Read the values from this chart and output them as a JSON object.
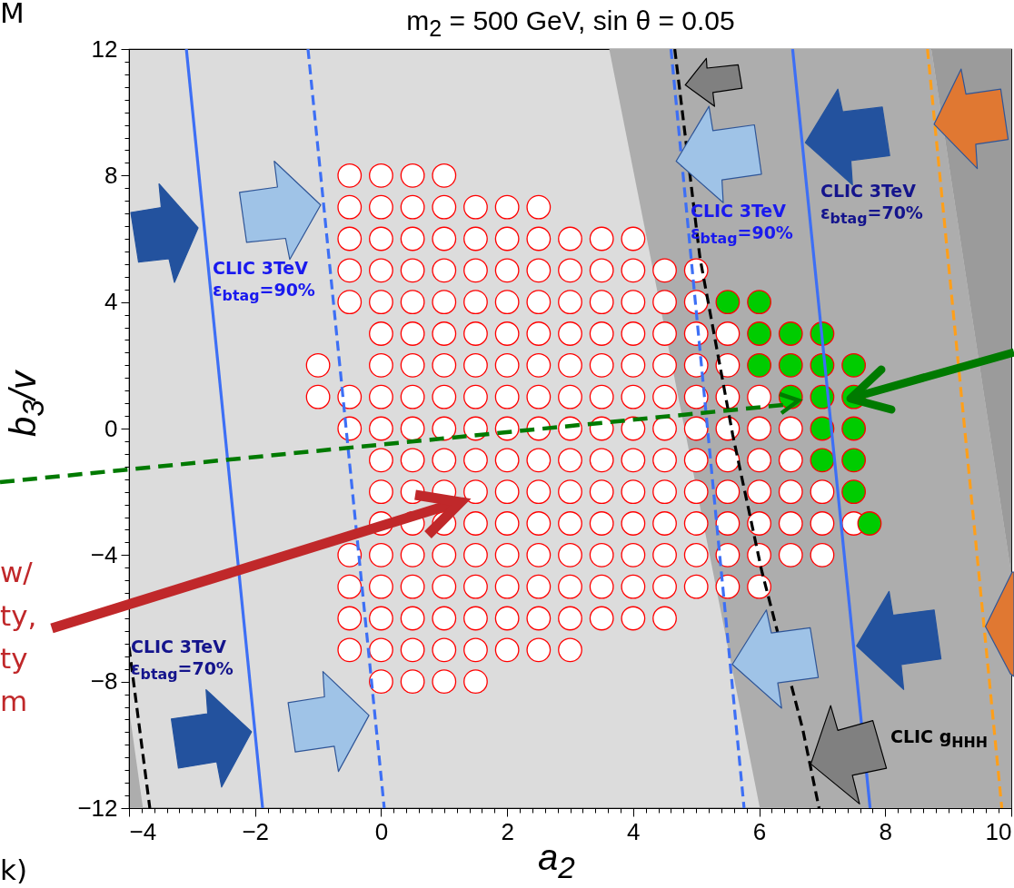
{
  "chart_data": {
    "type": "scatter",
    "title": "m$_{2}$ = 500 GeV, sin θ = 0.05",
    "xlabel": "a$_{2}$",
    "ylabel": "b$_{3}$/v",
    "xlim": [
      -4,
      10
    ],
    "ylim": [
      -12,
      12
    ],
    "xticks": [
      -4,
      {
        "value": -3.8,
        "label": null
      },
      {
        "value": -3.6,
        "label": null
      },
      {
        "value": -3.4,
        "label": null
      },
      {
        "value": -3.2,
        "label": null
      },
      {
        "value": -3,
        "label": null
      },
      {
        "value": -2.8,
        "label": null
      },
      {
        "value": -2.6,
        "label": null
      },
      {
        "value": -2.4,
        "label": null
      },
      {
        "value": -2.2,
        "label": null
      },
      -2,
      {
        "value": -1.8,
        "label": null
      },
      {
        "value": -1.6,
        "label": null
      },
      {
        "value": -1.4,
        "label": null
      },
      {
        "value": -1.2,
        "label": null
      },
      {
        "value": -1,
        "label": null
      },
      {
        "value": -0.8,
        "label": null
      },
      {
        "value": -0.6,
        "label": null
      },
      {
        "value": -0.4,
        "label": null
      },
      {
        "value": -0.2,
        "label": null
      },
      0,
      {
        "value": 0.2,
        "label": null
      },
      {
        "value": 0.4,
        "label": null
      },
      {
        "value": 0.6,
        "label": null
      },
      {
        "value": 0.8,
        "label": null
      },
      {
        "value": 1,
        "label": null
      },
      {
        "value": 1.2,
        "label": null
      },
      {
        "value": 1.4,
        "label": null
      },
      {
        "value": 1.6,
        "label": null
      },
      {
        "value": 1.8,
        "label": null
      },
      2,
      {
        "value": 2.2,
        "label": null
      },
      {
        "value": 2.4,
        "label": null
      },
      {
        "value": 2.6,
        "label": null
      },
      {
        "value": 2.8,
        "label": null
      },
      {
        "value": 3,
        "label": null
      },
      {
        "value": 3.2,
        "label": null
      },
      {
        "value": 3.4,
        "label": null
      },
      {
        "value": 3.6,
        "label": null
      },
      {
        "value": 3.8,
        "label": null
      },
      4,
      {
        "value": 4.2,
        "label": null
      },
      {
        "value": 4.4,
        "label": null
      },
      {
        "value": 4.6,
        "label": null
      },
      {
        "value": 4.8,
        "label": null
      },
      {
        "value": 5,
        "label": null
      },
      {
        "value": 5.2,
        "label": null
      },
      {
        "value": 5.4,
        "label": null
      },
      {
        "value": 5.6,
        "label": null
      },
      {
        "value": 5.8,
        "label": null
      },
      6,
      {
        "value": 6.2,
        "label": null
      },
      {
        "value": 6.4,
        "label": null
      },
      {
        "value": 6.6,
        "label": null
      },
      {
        "value": 6.8,
        "label": null
      },
      {
        "value": 7,
        "label": null
      },
      {
        "value": 7.2,
        "label": null
      },
      {
        "value": 7.4,
        "label": null
      },
      {
        "value": 7.6,
        "label": null
      },
      {
        "value": 7.8,
        "label": null
      },
      8,
      {
        "value": 8.2,
        "label": null
      },
      {
        "value": 8.4,
        "label": null
      },
      {
        "value": 8.6,
        "label": null
      },
      {
        "value": 8.8,
        "label": null
      },
      {
        "value": 9,
        "label": null
      },
      {
        "value": 9.2,
        "label": null
      },
      {
        "value": 9.4,
        "label": null
      },
      {
        "value": 9.6,
        "label": null
      },
      {
        "value": 9.8,
        "label": null
      },
      10
    ],
    "yticks": [
      -12,
      {
        "value": -11.6,
        "label": null
      },
      {
        "value": -11.2,
        "label": null
      },
      {
        "value": -10.8,
        "label": null
      },
      {
        "value": -10.4,
        "label": null
      },
      {
        "value": -10,
        "label": null
      },
      {
        "value": -9.6,
        "label": null
      },
      {
        "value": -9.2,
        "label": null
      },
      {
        "value": -8.8,
        "label": null
      },
      {
        "value": -8.4,
        "label": null
      },
      -8,
      {
        "value": -7.6,
        "label": null
      },
      {
        "value": -7.2,
        "label": null
      },
      {
        "value": -6.8,
        "label": null
      },
      {
        "value": -6.4,
        "label": null
      },
      {
        "value": -6,
        "label": null
      },
      {
        "value": -5.6,
        "label": null
      },
      {
        "value": -5.2,
        "label": null
      },
      {
        "value": -4.8,
        "label": null
      },
      {
        "value": -4.4,
        "label": null
      },
      -4,
      {
        "value": -3.6,
        "label": null
      },
      {
        "value": -3.2,
        "label": null
      },
      {
        "value": -2.8,
        "label": null
      },
      {
        "value": -2.4,
        "label": null
      },
      {
        "value": -2,
        "label": null
      },
      {
        "value": -1.6,
        "label": null
      },
      {
        "value": -1.2,
        "label": null
      },
      {
        "value": -0.8,
        "label": null
      },
      {
        "value": -0.4,
        "label": null
      },
      0,
      {
        "value": 0.4,
        "label": null
      },
      {
        "value": 0.8,
        "label": null
      },
      {
        "value": 1.2,
        "label": null
      },
      {
        "value": 1.6,
        "label": null
      },
      {
        "value": 2,
        "label": null
      },
      {
        "value": 2.4,
        "label": null
      },
      {
        "value": 2.8,
        "label": null
      },
      {
        "value": 3.2,
        "label": null
      },
      {
        "value": 3.6,
        "label": null
      },
      4,
      {
        "value": 4.4,
        "label": null
      },
      {
        "value": 4.8,
        "label": null
      },
      {
        "value": 5.2,
        "label": null
      },
      {
        "value": 5.6,
        "label": null
      },
      {
        "value": 6,
        "label": null
      },
      {
        "value": 6.4,
        "label": null
      },
      {
        "value": 6.8,
        "label": null
      },
      {
        "value": 7.2,
        "label": null
      },
      {
        "value": 7.6,
        "label": null
      },
      8,
      {
        "value": 8.4,
        "label": null
      },
      {
        "value": 8.8,
        "label": null
      },
      {
        "value": 9.2,
        "label": null
      },
      {
        "value": 9.6,
        "label": null
      },
      {
        "value": 10,
        "label": null
      },
      {
        "value": 10.4,
        "label": null
      },
      {
        "value": 10.8,
        "label": null
      },
      {
        "value": 11.2,
        "label": null
      },
      {
        "value": 11.6,
        "label": null
      },
      12
    ],
    "series": [
      {
        "type": "scatter",
        "marker": "circle",
        "color": "#ff0000",
        "x": [
          -0.5,
          0,
          0.5,
          1,
          -0.5,
          0,
          0.5,
          1,
          1.5,
          2,
          2.5,
          -0.5,
          0,
          0.5,
          1,
          1.5,
          2,
          2.5,
          3,
          3.5,
          4,
          -0.5,
          0,
          0.5,
          1,
          1.5,
          2,
          2.5,
          3,
          3.5,
          4,
          4.5,
          5,
          -0.5,
          0,
          0.5,
          1,
          1.5,
          2,
          2.5,
          3,
          3.5,
          4,
          4.5,
          5,
          0,
          0.5,
          1,
          1.5,
          2,
          2.5,
          3,
          3.5,
          4,
          4.5,
          5,
          5.5,
          -1,
          0,
          0.5,
          1,
          1.5,
          2,
          2.5,
          3,
          3.5,
          4,
          4.5,
          5,
          5.5,
          -1,
          -0.5,
          0,
          0.5,
          1,
          1.5,
          2,
          2.5,
          3,
          3.5,
          4,
          4.5,
          5,
          5.5,
          6,
          -0.5,
          0,
          0.5,
          1,
          1.5,
          2,
          2.5,
          3,
          3.5,
          4,
          4.5,
          5,
          5.5,
          6,
          6.5,
          0,
          0.5,
          1,
          1.5,
          2,
          2.5,
          3,
          3.5,
          4,
          4.5,
          5,
          5.5,
          6,
          6.5,
          0,
          0.5,
          1,
          1.5,
          2,
          2.5,
          3,
          3.5,
          4,
          4.5,
          5,
          5.5,
          6,
          6.5,
          7,
          0,
          0.5,
          1,
          1.5,
          2,
          2.5,
          3,
          3.5,
          4,
          4.5,
          5,
          5.5,
          6,
          6.5,
          7,
          7.5,
          -0.5,
          0,
          0.5,
          1,
          1.5,
          2,
          2.5,
          3,
          3.5,
          4,
          4.5,
          5,
          5.5,
          6,
          6.5,
          7,
          -0.5,
          0,
          0.5,
          1,
          1.5,
          2,
          2.5,
          3,
          3.5,
          4,
          4.5,
          5,
          5.5,
          6,
          -0.5,
          0,
          0.5,
          1,
          1.5,
          2,
          2.5,
          3,
          3.5,
          4,
          4.5,
          -0.5,
          0,
          0.5,
          1,
          1.5,
          2,
          2.5,
          3,
          0,
          0.5,
          1,
          1.5
        ],
        "values": [
          8,
          8,
          8,
          8,
          7,
          7,
          7,
          7,
          7,
          7,
          7,
          6,
          6,
          6,
          6,
          6,
          6,
          6,
          6,
          6,
          6,
          5,
          5,
          5,
          5,
          5,
          5,
          5,
          5,
          5,
          5,
          5,
          5,
          4,
          4,
          4,
          4,
          4,
          4,
          4,
          4,
          4,
          4,
          4,
          4,
          3,
          3,
          3,
          3,
          3,
          3,
          3,
          3,
          3,
          3,
          3,
          3,
          2,
          2,
          2,
          2,
          2,
          2,
          2,
          2,
          2,
          2,
          2,
          2,
          2,
          1,
          1,
          1,
          1,
          1,
          1,
          1,
          1,
          1,
          1,
          1,
          1,
          1,
          1,
          1,
          0,
          0,
          0,
          0,
          0,
          0,
          0,
          0,
          0,
          0,
          0,
          0,
          0,
          0,
          0,
          -1,
          -1,
          -1,
          -1,
          -1,
          -1,
          -1,
          -1,
          -1,
          -1,
          -1,
          -1,
          -1,
          -1,
          -2,
          -2,
          -2,
          -2,
          -2,
          -2,
          -2,
          -2,
          -2,
          -2,
          -2,
          -2,
          -2,
          -2,
          -2,
          -3,
          -3,
          -3,
          -3,
          -3,
          -3,
          -3,
          -3,
          -3,
          -3,
          -3,
          -3,
          -3,
          -3,
          -3,
          -3,
          -4,
          -4,
          -4,
          -4,
          -4,
          -4,
          -4,
          -4,
          -4,
          -4,
          -4,
          -4,
          -4,
          -4,
          -4,
          -4,
          -5,
          -5,
          -5,
          -5,
          -5,
          -5,
          -5,
          -5,
          -5,
          -5,
          -5,
          -5,
          -5,
          -5,
          -6,
          -6,
          -6,
          -6,
          -6,
          -6,
          -6,
          -6,
          -6,
          -6,
          -6,
          -7,
          -7,
          -7,
          -7,
          -7,
          -7,
          -7,
          -7,
          -8,
          -8,
          -8,
          -8
        ]
      },
      {
        "type": "scatter",
        "marker": "circle",
        "color": "#00cc00",
        "x": [
          5.5,
          6,
          6,
          6.5,
          7,
          6,
          6.5,
          7,
          7.5,
          6.5,
          7,
          7.5,
          7,
          7.5,
          7,
          7.5,
          7.5,
          7.75
        ],
        "values": [
          4,
          4,
          3,
          3,
          3,
          2,
          2,
          2,
          2,
          1,
          1,
          1,
          0,
          0,
          -1,
          -1,
          -2,
          -3
        ]
      },
      {
        "type": "line",
        "color": "#3d6ff5",
        "line_style": "solid",
        "x": [
          -3.09,
          -1.88
        ],
        "values": [
          12,
          -12
        ]
      },
      {
        "type": "line",
        "color": "#3d6ff5",
        "line_style": "dashed",
        "x": [
          -1.16,
          0.05
        ],
        "values": [
          12,
          -12
        ]
      },
      {
        "type": "line",
        "color": "#3d6ff5",
        "line_style": "dashed",
        "x": [
          4.6,
          5.76
        ],
        "values": [
          12,
          -12
        ]
      },
      {
        "type": "line",
        "color": "#000000",
        "line_style": "dashed",
        "x": [
          4.66,
          5.06,
          5.58,
          6.04,
          6.69,
          6.95
        ],
        "values": [
          12,
          5.4,
          -0.2,
          -4.5,
          -9.5,
          -12
        ]
      },
      {
        "type": "line",
        "color": "#000000",
        "line_style": "dashed",
        "x": [
          -4,
          -3.67
        ],
        "values": [
          -6.9,
          -12
        ]
      },
      {
        "type": "line",
        "color": "#3d6ff5",
        "line_style": "solid",
        "x": [
          6.53,
          7.76
        ],
        "values": [
          12,
          -12
        ]
      },
      {
        "type": "line",
        "color": "#ff9f1a",
        "line_style": "dashed",
        "x": [
          8.67,
          9.85
        ],
        "values": [
          12,
          -12
        ]
      }
    ],
    "annotations": [
      "CLIC 3TeV\nε$_{btag}$=90%",
      "CLIC 3TeV\nε$_{btag}$=90%",
      "CLIC 3TeV\nε$_{btag}$=70%",
      "CLIC 3TeV\nε$_{btag}$=70%",
      "CLIC g$_{HHH}$",
      "M",
      "w/",
      "ty,",
      "ty",
      "m",
      "k)"
    ]
  }
}
